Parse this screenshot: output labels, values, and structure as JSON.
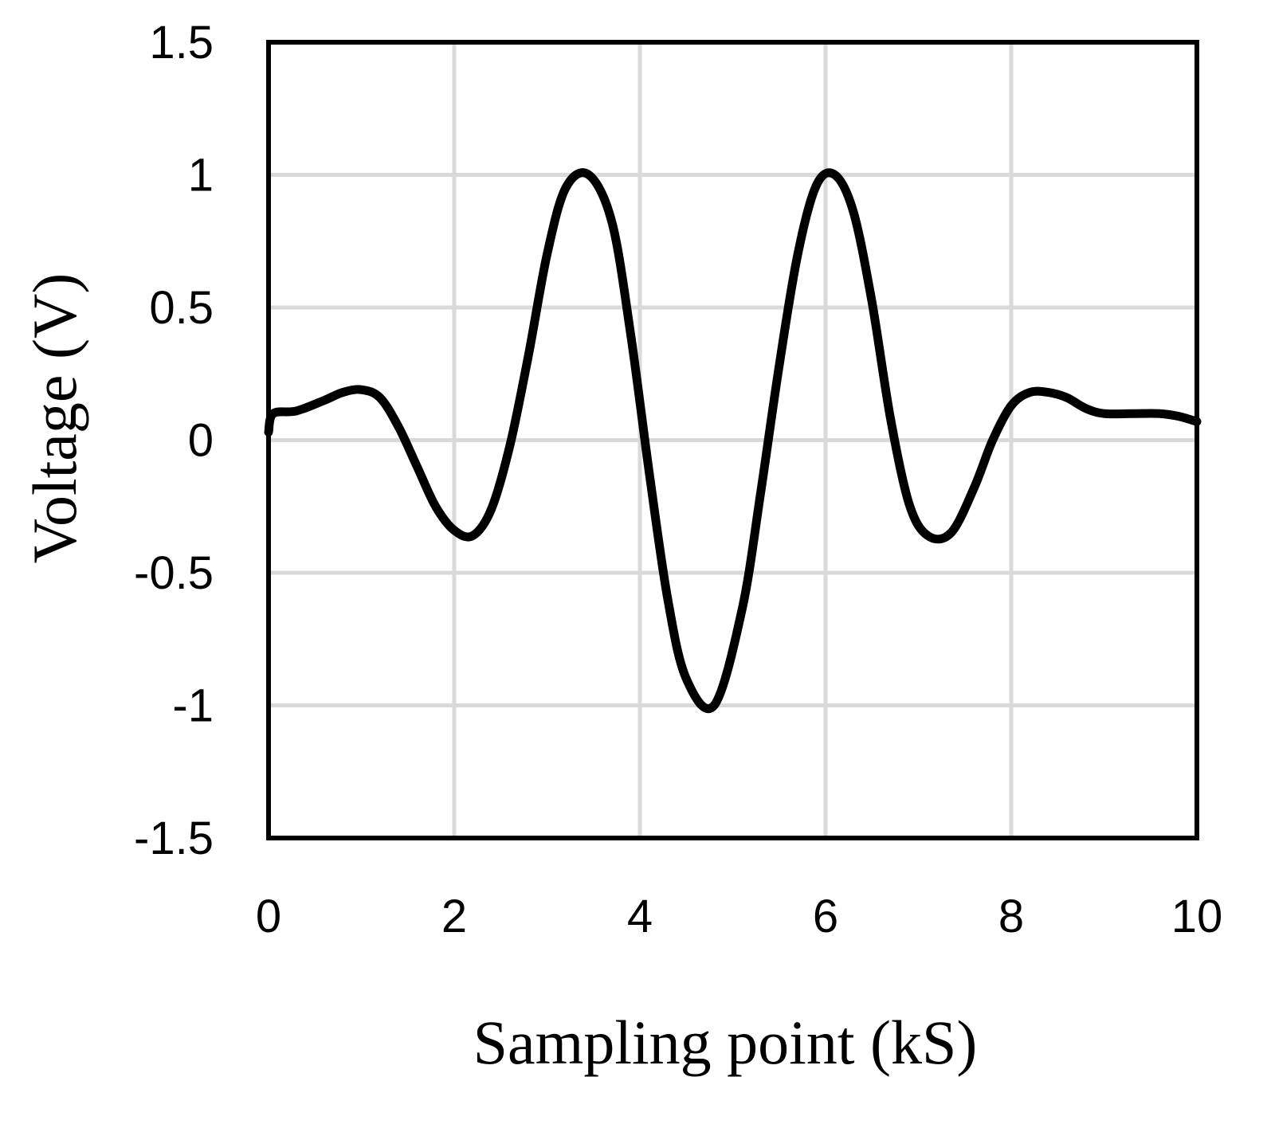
{
  "chart_data": {
    "type": "line",
    "title": "",
    "xlabel": "Sampling point (kS)",
    "ylabel": "Voltage (V)",
    "xlim": [
      0,
      10
    ],
    "ylim": [
      -1.5,
      1.5
    ],
    "x_ticks": [
      0,
      2,
      4,
      6,
      8,
      10
    ],
    "x_tick_labels": [
      "0",
      "2",
      "4",
      "6",
      "8",
      "10"
    ],
    "y_ticks": [
      1.5,
      1,
      0.5,
      0,
      -0.5,
      -1,
      -1.5
    ],
    "y_tick_labels": [
      "1.5",
      "1",
      "0.5",
      "0",
      "-0.5",
      "-1",
      "-1.5"
    ],
    "grid": true,
    "legend": "none",
    "colors": {
      "line": "#000000",
      "grid": "#d9d9d9",
      "frame": "#000000"
    },
    "series": [
      {
        "values_x": [
          0,
          0.05,
          0.3,
          0.6,
          0.8,
          1.0,
          1.2,
          1.4,
          1.6,
          1.8,
          2.0,
          2.2,
          2.4,
          2.6,
          2.8,
          3.0,
          3.2,
          3.45,
          3.7,
          3.9,
          4.1,
          4.3,
          4.5,
          4.8,
          5.1,
          5.3,
          5.5,
          5.7,
          5.9,
          6.1,
          6.3,
          6.5,
          6.7,
          6.9,
          7.1,
          7.35,
          7.6,
          7.8,
          8.0,
          8.2,
          8.4,
          8.6,
          8.8,
          9.0,
          9.3,
          9.6,
          9.8,
          10.0
        ],
        "values_y": [
          0.03,
          0.1,
          0.11,
          0.15,
          0.18,
          0.19,
          0.16,
          0.05,
          -0.1,
          -0.25,
          -0.34,
          -0.36,
          -0.26,
          -0.02,
          0.32,
          0.7,
          0.95,
          1.0,
          0.82,
          0.4,
          -0.12,
          -0.6,
          -0.9,
          -1.0,
          -0.64,
          -0.2,
          0.28,
          0.7,
          0.96,
          1.0,
          0.86,
          0.52,
          0.08,
          -0.24,
          -0.36,
          -0.35,
          -0.18,
          0.0,
          0.13,
          0.18,
          0.18,
          0.16,
          0.12,
          0.1,
          0.1,
          0.1,
          0.09,
          0.07
        ]
      }
    ]
  }
}
